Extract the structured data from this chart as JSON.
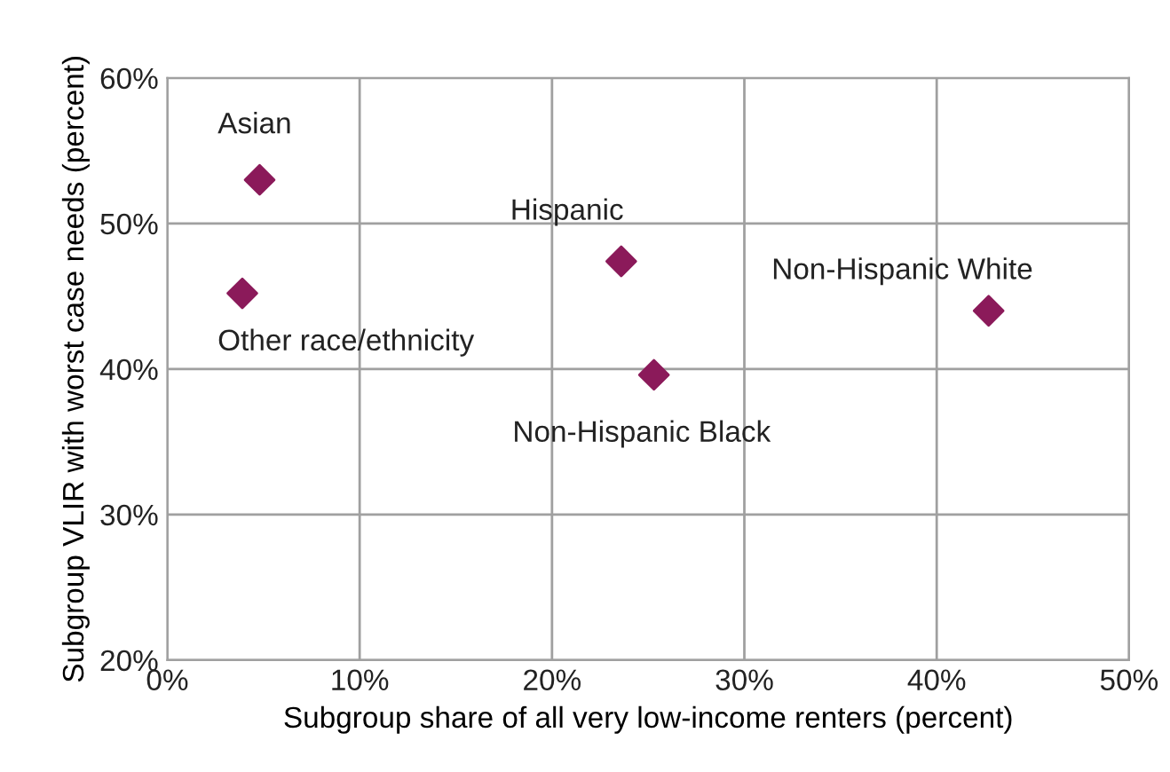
{
  "chart_data": {
    "type": "scatter",
    "xlabel": "Subgroup share of all very low-income renters (percent)",
    "ylabel": "Subgroup VLIR with worst case needs (percent)",
    "series": [
      {
        "color": "#8b1a5a",
        "x": [
          4.8,
          3.9,
          23.6,
          25.3,
          42.7
        ],
        "values": [
          53.0,
          45.2,
          47.4,
          39.6,
          44.0
        ]
      }
    ],
    "annotations": [
      {
        "text": "Asian",
        "x": 4.8,
        "y": 53.0
      },
      {
        "text": "Other race/ethnicity",
        "x": 3.9,
        "y": 45.2
      },
      {
        "text": "Hispanic",
        "x": 23.6,
        "y": 47.4
      },
      {
        "text": "Non-Hispanic Black",
        "x": 25.3,
        "y": 39.6
      },
      {
        "text": "Non-Hispanic White",
        "x": 42.7,
        "y": 44.0
      }
    ],
    "xlim": [
      0,
      50
    ],
    "ylim": [
      20,
      60
    ],
    "xticks": [
      {
        "value": 0,
        "label": "0%"
      },
      {
        "value": 10,
        "label": "10%"
      },
      {
        "value": 20,
        "label": "20%"
      },
      {
        "value": 30,
        "label": "30%"
      },
      {
        "value": 40,
        "label": "40%"
      },
      {
        "value": 50,
        "label": "50%"
      }
    ],
    "yticks": [
      {
        "value": 20,
        "label": "20%"
      },
      {
        "value": 30,
        "label": "30%"
      },
      {
        "value": 40,
        "label": "40%"
      },
      {
        "value": 50,
        "label": "50%"
      },
      {
        "value": 60,
        "label": "60%"
      }
    ],
    "grid": true,
    "marker": "diamond"
  }
}
